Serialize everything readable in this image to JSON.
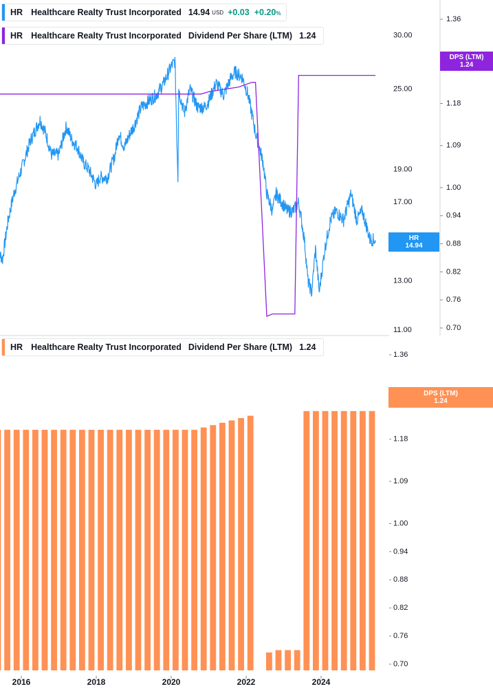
{
  "legends": {
    "top1": {
      "ticker": "HR",
      "name": "Healthcare Realty Trust Incorporated",
      "price": "14.94",
      "currency": "USD",
      "change": "+0.03",
      "change_pct": "+0.20",
      "pct_sign": "%"
    },
    "top2": {
      "ticker": "HR",
      "name": "Healthcare Realty Trust Incorporated",
      "metric": "Dividend Per Share (LTM)",
      "value": "1.24"
    },
    "bottom": {
      "ticker": "HR",
      "name": "Healthcare Realty Trust Incorporated",
      "metric": "Dividend Per Share (LTM)",
      "value": "1.24"
    }
  },
  "tags": {
    "dps_top": {
      "label": "DPS (LTM)",
      "value": "1.24"
    },
    "hr": {
      "label": "HR",
      "value": "14.94"
    },
    "dps_bottom": {
      "label": "DPS (LTM)",
      "value": "1.24"
    }
  },
  "colors": {
    "price": "#2196f3",
    "dps_line": "#8e24dd",
    "bars": "#ff9154",
    "grid": "#e0e3eb",
    "text": "#131722"
  },
  "chart_data": [
    {
      "type": "line",
      "name": "HR price",
      "y_ticks": [
        "30.00",
        "25.00",
        "19.00",
        "17.00",
        "13.00",
        "11.00"
      ],
      "ylim": [
        11,
        33
      ],
      "log_scale": true,
      "x": [
        2015.35,
        2015.5,
        2015.65,
        2015.8,
        2016.0,
        2016.25,
        2016.5,
        2016.65,
        2016.8,
        2017.0,
        2017.2,
        2017.35,
        2017.5,
        2017.65,
        2017.8,
        2018.0,
        2018.1,
        2018.3,
        2018.5,
        2018.6,
        2018.75,
        2018.9,
        2019.0,
        2019.2,
        2019.4,
        2019.6,
        2019.8,
        2020.0,
        2020.1,
        2020.15,
        2020.18,
        2020.2,
        2020.23,
        2020.35,
        2020.5,
        2020.7,
        2020.9,
        2021.0,
        2021.2,
        2021.4,
        2021.6,
        2021.7,
        2021.9,
        2022.05,
        2022.15,
        2022.25,
        2022.35,
        2022.45,
        2022.55,
        2022.7,
        2022.8,
        2022.95,
        2023.1,
        2023.25,
        2023.4,
        2023.55,
        2023.65,
        2023.75,
        2023.85,
        2023.95,
        2024.1,
        2024.25,
        2024.4,
        2024.6,
        2024.8,
        2024.95,
        2025.1,
        2025.3,
        2025.45
      ],
      "y": [
        14.5,
        14.0,
        16.0,
        17.5,
        19.0,
        21.0,
        22.5,
        21.5,
        20.0,
        20.0,
        22.0,
        21.0,
        20.5,
        19.5,
        19.0,
        18.0,
        18.5,
        18.5,
        20.0,
        21.5,
        20.5,
        21.5,
        22.0,
        23.5,
        24.0,
        24.5,
        25.5,
        27.0,
        27.5,
        21.0,
        18.5,
        25.0,
        24.5,
        23.0,
        25.0,
        23.5,
        23.5,
        24.0,
        25.5,
        24.5,
        26.0,
        26.5,
        26.0,
        24.5,
        23.0,
        21.5,
        20.5,
        19.5,
        17.5,
        16.5,
        17.5,
        17.0,
        16.5,
        16.5,
        17.0,
        15.0,
        13.0,
        12.5,
        14.5,
        12.5,
        14.5,
        16.0,
        16.5,
        16.0,
        17.5,
        16.0,
        16.5,
        15.0,
        14.94
      ]
    },
    {
      "type": "line",
      "name": "DPS (LTM) line",
      "y_ticks": [
        "1.36",
        "1.27",
        "1.18",
        "1.09",
        "1.00",
        "0.94",
        "0.88",
        "0.82",
        "0.76",
        "0.70"
      ],
      "ylim": [
        0.7,
        1.4
      ],
      "x": [
        2015.35,
        2016.0,
        2017.0,
        2018.0,
        2019.0,
        2020.0,
        2020.8,
        2021.0,
        2021.4,
        2021.8,
        2022.15,
        2022.25,
        2022.55,
        2022.7,
        2023.0,
        2023.3,
        2023.4,
        2023.7,
        2024.0,
        2025.0,
        2025.45
      ],
      "y": [
        1.2,
        1.2,
        1.2,
        1.2,
        1.2,
        1.2,
        1.2,
        1.205,
        1.21,
        1.215,
        1.225,
        1.225,
        0.725,
        0.73,
        0.73,
        0.73,
        1.24,
        1.24,
        1.24,
        1.24,
        1.24
      ]
    },
    {
      "type": "bar",
      "name": "DPS (LTM) bars",
      "y_ticks": [
        "1.36",
        "1.27",
        "1.18",
        "1.09",
        "1.00",
        "0.94",
        "0.88",
        "0.82",
        "0.76",
        "0.70"
      ],
      "ylim": [
        0.7,
        1.4
      ],
      "x_ticks": [
        "2016",
        "2018",
        "2020",
        "2022",
        "2024"
      ],
      "values": [
        1.2,
        1.2,
        1.2,
        1.2,
        1.2,
        1.2,
        1.2,
        1.2,
        1.2,
        1.2,
        1.2,
        1.2,
        1.2,
        1.2,
        1.2,
        1.2,
        1.2,
        1.2,
        1.2,
        1.2,
        1.2,
        1.2,
        1.205,
        1.21,
        1.215,
        1.22,
        1.225,
        1.23,
        null,
        0.725,
        0.73,
        0.73,
        0.73,
        1.24,
        1.24,
        1.24,
        1.24,
        1.24,
        1.24,
        1.24,
        1.24
      ]
    }
  ]
}
